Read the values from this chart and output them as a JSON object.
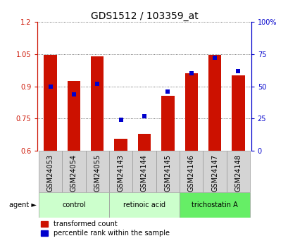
{
  "title": "GDS1512 / 103359_at",
  "samples": [
    "GSM24053",
    "GSM24054",
    "GSM24055",
    "GSM24143",
    "GSM24144",
    "GSM24145",
    "GSM24146",
    "GSM24147",
    "GSM24148"
  ],
  "red_values": [
    1.047,
    0.925,
    1.04,
    0.655,
    0.68,
    0.855,
    0.96,
    1.047,
    0.95
  ],
  "blue_values": [
    50,
    44,
    52,
    24,
    27,
    46,
    60,
    72,
    62
  ],
  "ylim_left": [
    0.6,
    1.2
  ],
  "ylim_right": [
    0,
    100
  ],
  "yticks_left": [
    0.6,
    0.75,
    0.9,
    1.05,
    1.2
  ],
  "yticks_right": [
    0,
    25,
    50,
    75,
    100
  ],
  "ytick_labels_left": [
    "0.6",
    "0.75",
    "0.9",
    "1.05",
    "1.2"
  ],
  "ytick_labels_right": [
    "0",
    "25",
    "50",
    "75",
    "100%"
  ],
  "red_color": "#cc1100",
  "blue_color": "#0000cc",
  "bar_width": 0.55,
  "grid_color": "#000000",
  "bg_color": "#ffffff",
  "plot_bg": "#ffffff",
  "tick_label_fontsize": 7,
  "title_fontsize": 10,
  "legend_fontsize": 7,
  "group_defs": [
    {
      "label": "control",
      "start": 0,
      "end": 2,
      "color": "#ccffcc"
    },
    {
      "label": "retinoic acid",
      "start": 3,
      "end": 5,
      "color": "#ccffcc"
    },
    {
      "label": "trichostatin A",
      "start": 6,
      "end": 8,
      "color": "#66ee66"
    }
  ],
  "sample_box_color": "#d4d4d4",
  "sample_box_edge": "#999999",
  "left_axis_color": "#cc1100",
  "right_axis_color": "#0000cc"
}
